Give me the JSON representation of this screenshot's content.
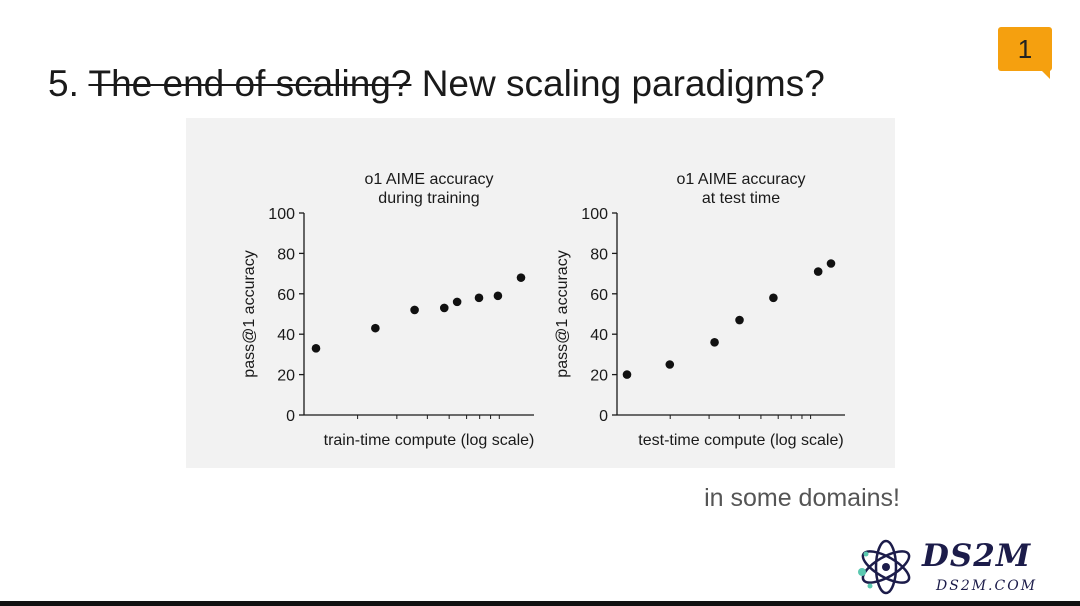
{
  "slide": {
    "title_number": "5.",
    "title_struck": "The end of scaling?",
    "title_rest": "New scaling paradigms?",
    "comment_count": "1",
    "note": "in some domains!",
    "logo_brand": "DS2M",
    "logo_domain": "DS2M.COM"
  },
  "colors": {
    "accent": "#f5a00f",
    "panel_bg": "#f2f2f2",
    "marker": "#111111",
    "logo": "#1c1c4a"
  },
  "chart_data": [
    {
      "type": "scatter",
      "title": [
        "o1 AIME accuracy",
        "during training"
      ],
      "xlabel": "train-time compute (log scale)",
      "ylabel": "pass@1 accuracy",
      "x_scale": "log",
      "x_tick_labels_shown": false,
      "ylim": [
        0,
        100
      ],
      "yticks": [
        0,
        20,
        40,
        60,
        80,
        100
      ],
      "grid": false,
      "x": [
        1,
        4,
        10,
        20,
        27,
        45,
        70,
        120
      ],
      "y": [
        33,
        43,
        52,
        53,
        56,
        58,
        59,
        68
      ]
    },
    {
      "type": "scatter",
      "title": [
        "o1 AIME accuracy",
        "at test time"
      ],
      "xlabel": "test-time compute (log scale)",
      "ylabel": "pass@1 accuracy",
      "x_scale": "log",
      "x_tick_labels_shown": false,
      "ylim": [
        0,
        100
      ],
      "yticks": [
        0,
        20,
        40,
        60,
        80,
        100
      ],
      "grid": false,
      "x": [
        1,
        2.4,
        6,
        10,
        20,
        50,
        65
      ],
      "y": [
        20,
        25,
        36,
        47,
        58,
        71,
        75
      ]
    }
  ]
}
